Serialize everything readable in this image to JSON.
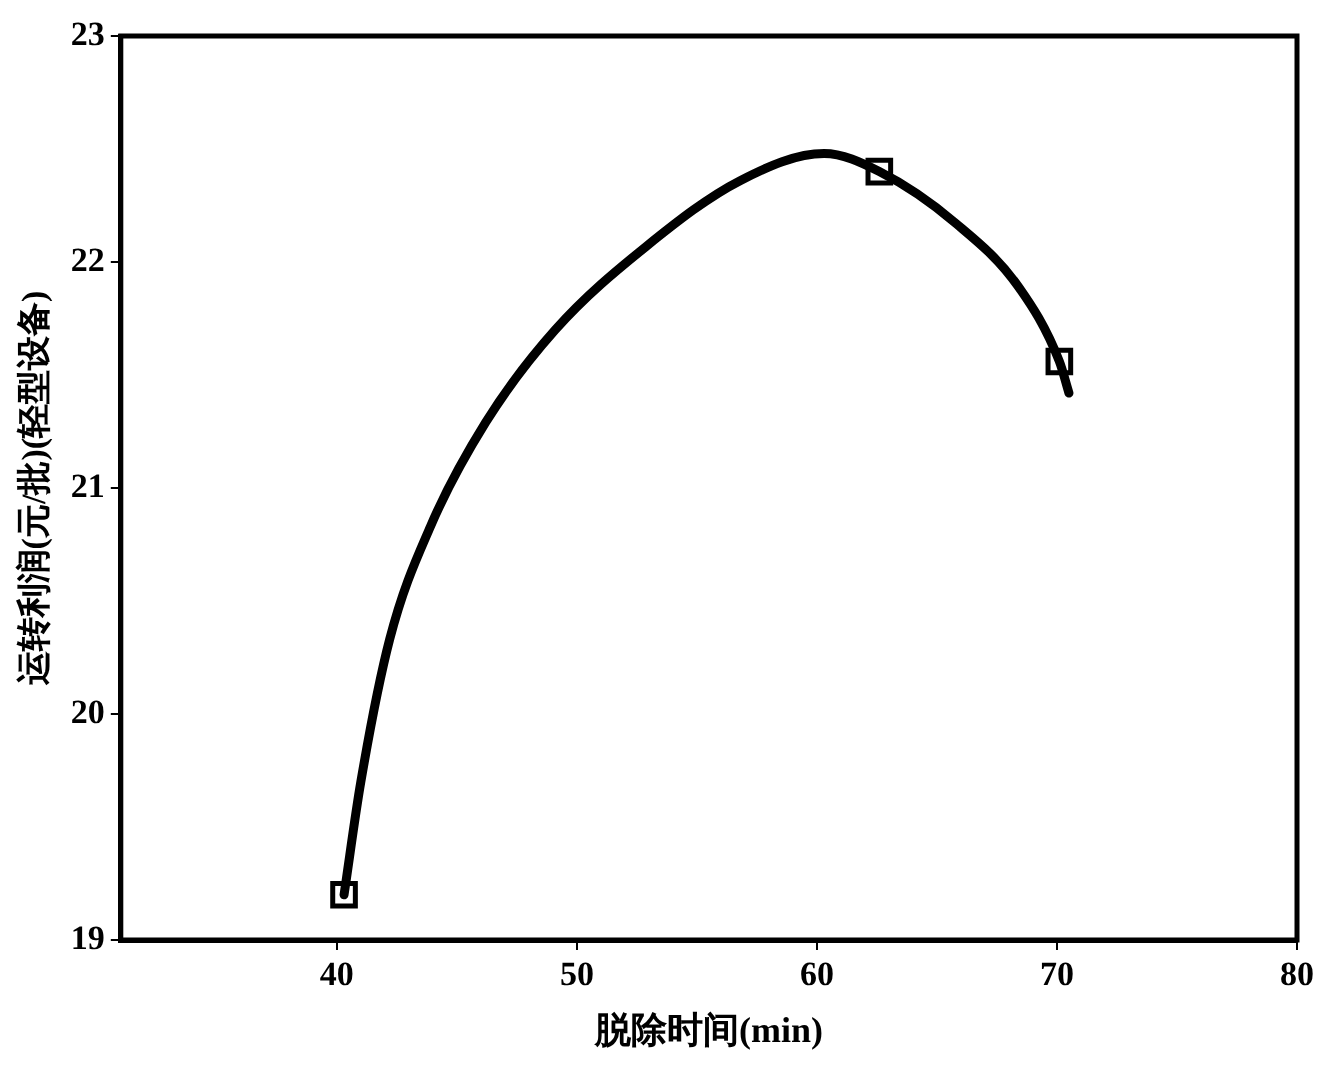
{
  "chart_data": {
    "type": "line",
    "xlabel": "脱除时间(min)",
    "ylabel": "运转利润(元/批)(轻型设备)",
    "xlim": [
      31,
      80
    ],
    "xticks": [
      40,
      50,
      60,
      70,
      80
    ],
    "ylim": [
      19,
      23
    ],
    "yticks": [
      19,
      20,
      21,
      22,
      23
    ],
    "grid": false,
    "legend": false,
    "series": [
      {
        "type": "line",
        "color": "#000000",
        "marker": "none",
        "x": [
          40.3,
          41.0,
          42.2,
          43.9,
          46.2,
          49.1,
          52.9,
          56.8,
          60.3,
          62.6,
          65.8,
          68.4,
          70.1,
          70.5
        ],
        "values": [
          19.2,
          19.7,
          20.33,
          20.83,
          21.29,
          21.7,
          22.07,
          22.36,
          22.48,
          22.4,
          22.17,
          21.89,
          21.56,
          21.42
        ]
      },
      {
        "type": "scatter",
        "color": "#000000",
        "marker": "square",
        "x": [
          40.3,
          62.6,
          70.1
        ],
        "values": [
          19.2,
          22.4,
          21.56
        ]
      }
    ]
  }
}
